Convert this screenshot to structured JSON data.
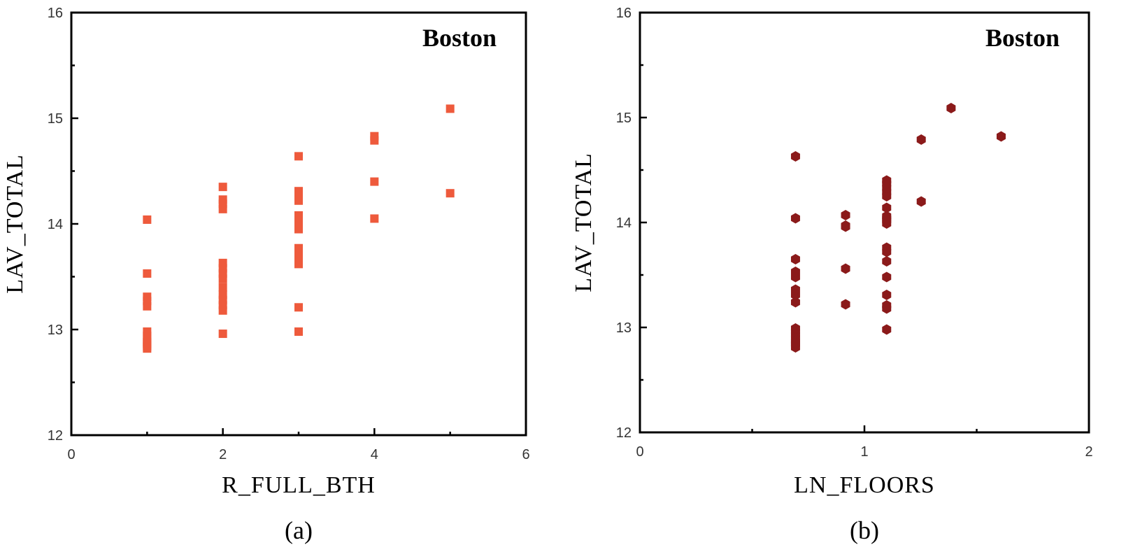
{
  "chart_data": [
    {
      "type": "scatter",
      "title": "Boston",
      "xlabel": "R_FULL_BTH",
      "ylabel": "LAV_TOTAL",
      "caption": "(a)",
      "xlim": [
        0,
        6
      ],
      "ylim": [
        12,
        16
      ],
      "xticks": [
        0,
        2,
        4,
        6
      ],
      "yticks": [
        12,
        13,
        14,
        15,
        16
      ],
      "x_minor_step": 1,
      "y_minor_step": 0.5,
      "marker": "square",
      "color": "#ee5a3c",
      "x": [
        1,
        1,
        1,
        1,
        1,
        1,
        1,
        1,
        1,
        1,
        1,
        1,
        2,
        2,
        2,
        2,
        2,
        2,
        2,
        2,
        2,
        2,
        2,
        2,
        2,
        2,
        3,
        3,
        3,
        3,
        3,
        3,
        3,
        3,
        3,
        3,
        3,
        3,
        3,
        3,
        3,
        4,
        4,
        4,
        4,
        5,
        5
      ],
      "y": [
        12.82,
        12.86,
        12.9,
        12.94,
        12.98,
        13.22,
        13.27,
        13.31,
        13.53,
        14.04,
        12.88,
        12.84,
        12.96,
        13.18,
        13.23,
        13.28,
        13.33,
        13.4,
        13.48,
        13.53,
        13.58,
        13.63,
        14.14,
        14.19,
        14.23,
        14.35,
        12.98,
        13.21,
        13.62,
        13.67,
        13.72,
        13.77,
        13.95,
        13.99,
        14.04,
        14.08,
        14.22,
        14.26,
        14.31,
        14.64,
        13.97,
        14.05,
        14.4,
        14.79,
        14.83,
        14.29,
        15.09
      ]
    },
    {
      "type": "scatter",
      "title": "Boston",
      "xlabel": "LN_FLOORS",
      "ylabel": "LAV_TOTAL",
      "caption": "(b)",
      "xlim": [
        0,
        2
      ],
      "ylim": [
        12,
        16
      ],
      "xticks": [
        0,
        1,
        2
      ],
      "yticks": [
        12,
        13,
        14,
        15,
        16
      ],
      "x_minor_step": 0.5,
      "y_minor_step": 0.5,
      "marker": "hexagon",
      "color": "#8b1a1a",
      "x": [
        0.693,
        0.693,
        0.693,
        0.693,
        0.693,
        0.693,
        0.693,
        0.693,
        0.693,
        0.693,
        0.693,
        0.693,
        0.693,
        0.693,
        0.693,
        0.693,
        0.916,
        0.916,
        0.916,
        0.916,
        0.916,
        1.099,
        1.099,
        1.099,
        1.099,
        1.099,
        1.099,
        1.099,
        1.099,
        1.099,
        1.099,
        1.099,
        1.099,
        1.099,
        1.099,
        1.099,
        1.099,
        1.099,
        1.099,
        1.253,
        1.253,
        1.386,
        1.609
      ],
      "y": [
        12.81,
        12.84,
        12.87,
        12.9,
        12.93,
        12.96,
        12.99,
        13.24,
        13.31,
        13.36,
        13.48,
        13.53,
        13.65,
        14.04,
        14.63,
        12.85,
        13.22,
        13.56,
        13.96,
        14.07,
        13.97,
        12.98,
        13.18,
        13.21,
        13.31,
        13.48,
        13.63,
        13.72,
        13.76,
        13.99,
        14.02,
        14.06,
        14.14,
        14.25,
        14.29,
        14.33,
        14.37,
        14.4,
        14.04,
        14.2,
        14.79,
        15.09,
        14.82
      ]
    }
  ]
}
